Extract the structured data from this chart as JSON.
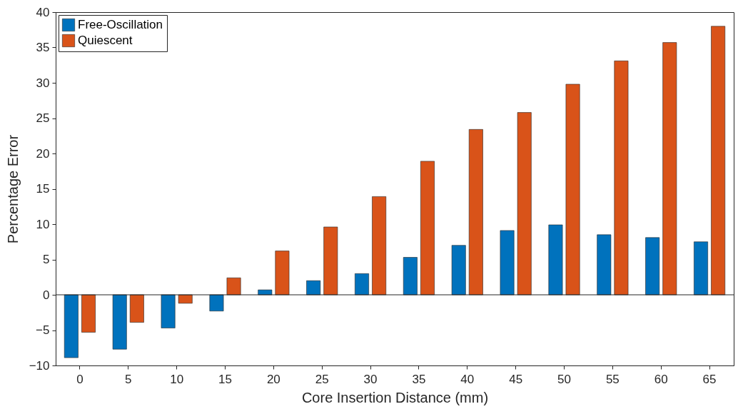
{
  "chart_data": {
    "type": "bar",
    "xlabel": "Core Insertion Distance (mm)",
    "ylabel": "Percentage Error",
    "categories": [
      "0",
      "5",
      "10",
      "15",
      "20",
      "25",
      "30",
      "35",
      "40",
      "45",
      "50",
      "55",
      "60",
      "65"
    ],
    "series": [
      {
        "name": "Free-Oscillation",
        "color": "#0072bd",
        "values": [
          -8.9,
          -7.7,
          -4.7,
          -2.3,
          0.7,
          2.0,
          3.0,
          5.3,
          7.0,
          9.1,
          9.9,
          8.5,
          8.1,
          7.5
        ]
      },
      {
        "name": "Quiescent",
        "color": "#d95319",
        "values": [
          -5.3,
          -3.9,
          -1.2,
          2.4,
          6.2,
          9.6,
          13.9,
          18.9,
          23.4,
          25.8,
          29.8,
          33.1,
          35.7,
          38.0
        ]
      }
    ],
    "ylim": [
      -10,
      40
    ],
    "yticks": [
      -10,
      -5,
      0,
      5,
      10,
      15,
      20,
      25,
      30,
      35,
      40
    ],
    "grid": false,
    "legend": "top left",
    "ref_lines": [
      {
        "axis": "y",
        "value": 0,
        "color": "#262626"
      }
    ]
  }
}
